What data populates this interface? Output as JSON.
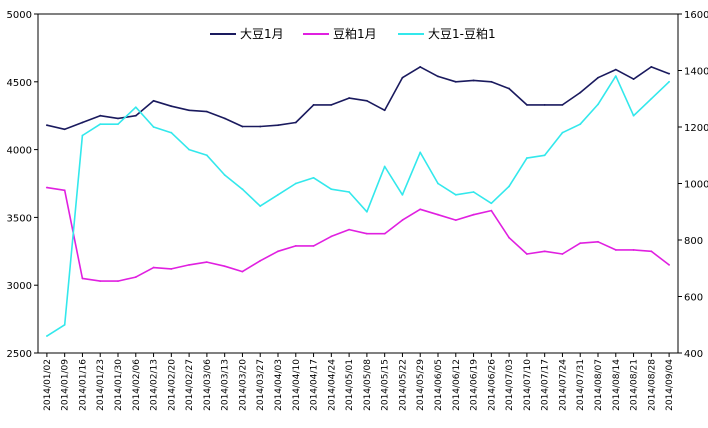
{
  "chart_data": {
    "type": "line",
    "x": [
      "2014/01/02",
      "2014/01/09",
      "2014/01/16",
      "2014/01/23",
      "2014/01/30",
      "2014/02/06",
      "2014/02/13",
      "2014/02/20",
      "2014/02/27",
      "2014/03/06",
      "2014/03/13",
      "2014/03/20",
      "2014/03/27",
      "2014/04/03",
      "2014/04/10",
      "2014/04/17",
      "2014/04/24",
      "2014/05/01",
      "2014/05/08",
      "2014/05/15",
      "2014/05/22",
      "2014/05/29",
      "2014/06/05",
      "2014/06/12",
      "2014/06/19",
      "2014/06/26",
      "2014/07/03",
      "2014/07/10",
      "2014/07/17",
      "2014/07/24",
      "2014/07/31",
      "2014/08/07",
      "2014/08/14",
      "2014/08/21",
      "2014/08/28",
      "2014/09/04"
    ],
    "y_left": {
      "ticks": [
        "2500",
        "3000",
        "3500",
        "4000",
        "4500",
        "5000"
      ],
      "lim": [
        2500,
        5000
      ]
    },
    "y_right": {
      "ticks": [
        "400",
        "600",
        "800",
        "1000",
        "1200",
        "1400",
        "1600"
      ],
      "lim": [
        400,
        1600
      ]
    },
    "grid": false,
    "legend_position": "top-center",
    "series": [
      {
        "name": "大豆1月",
        "color": "#1a1a5e",
        "axis": "left",
        "values": [
          4180,
          4150,
          4200,
          4250,
          4230,
          4250,
          4360,
          4320,
          4290,
          4280,
          4230,
          4170,
          4170,
          4180,
          4200,
          4330,
          4330,
          4380,
          4360,
          4290,
          4530,
          4610,
          4540,
          4500,
          4510,
          4500,
          4450,
          4330,
          4330,
          4330,
          4420,
          4530,
          4590,
          4520,
          4610,
          4560
        ]
      },
      {
        "name": "豆粕1月",
        "color": "#e020e0",
        "axis": "left",
        "values": [
          3720,
          3700,
          3050,
          3030,
          3030,
          3060,
          3130,
          3120,
          3150,
          3170,
          3140,
          3100,
          3180,
          3250,
          3290,
          3290,
          3360,
          3410,
          3380,
          3380,
          3480,
          3560,
          3520,
          3480,
          3520,
          3550,
          3350,
          3230,
          3250,
          3230,
          3310,
          3320,
          3260,
          3260,
          3250,
          3150
        ]
      },
      {
        "name": "大豆1-豆粕1",
        "color": "#33e8ec",
        "axis": "right",
        "values": [
          460,
          500,
          1170,
          1210,
          1210,
          1270,
          1200,
          1180,
          1120,
          1100,
          1030,
          980,
          920,
          960,
          1000,
          1020,
          980,
          970,
          900,
          1060,
          960,
          1110,
          1000,
          960,
          970,
          930,
          990,
          1090,
          1100,
          1180,
          1210,
          1280,
          1380,
          1240,
          1300,
          1360
        ]
      }
    ],
    "title": "",
    "xlabel": "",
    "ylabel": ""
  }
}
